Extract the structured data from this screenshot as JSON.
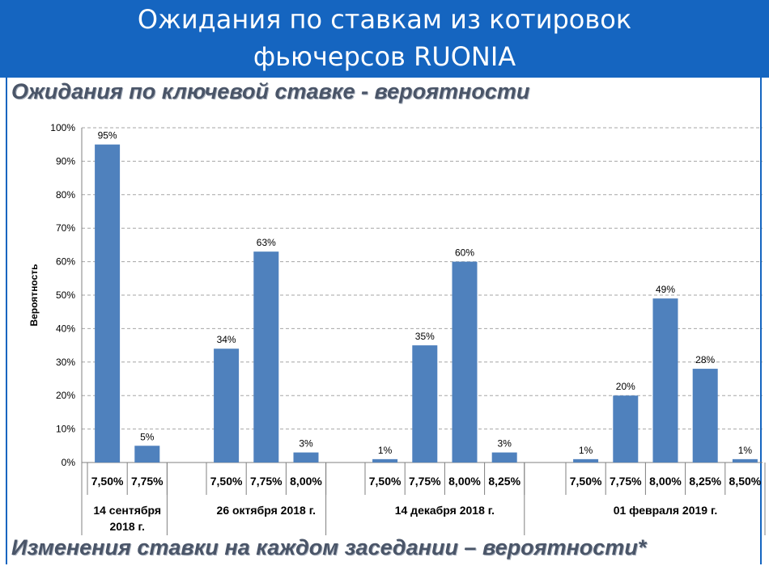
{
  "banner": {
    "line1": "Ожидания по ставкам из котировок",
    "line2": "фьючерсов RUONIA"
  },
  "headings": {
    "top": "Ожидания по  ключевой ставке  - вероятности",
    "bottom": "Изменения ставки на каждом заседании – вероятности*"
  },
  "colors": {
    "banner": "#1565c0",
    "bar": "#4f81bd",
    "heading": "#4a5568"
  },
  "chart_data": {
    "type": "bar",
    "ylabel": "Вероятность",
    "ylim": [
      0,
      100
    ],
    "yticks": [
      "0%",
      "10%",
      "20%",
      "30%",
      "40%",
      "50%",
      "60%",
      "70%",
      "80%",
      "90%",
      "100%"
    ],
    "grid": true,
    "groups": [
      {
        "label_lines": [
          "14 сентября",
          "2018 г."
        ],
        "categories": [
          "7,50%",
          "7,75%"
        ],
        "values": [
          95,
          5
        ],
        "value_labels": [
          "95%",
          "5%"
        ]
      },
      {
        "label_lines": [
          "26 октября 2018 г."
        ],
        "categories": [
          "7,50%",
          "7,75%",
          "8,00%"
        ],
        "values": [
          34,
          63,
          3
        ],
        "value_labels": [
          "34%",
          "63%",
          "3%"
        ]
      },
      {
        "label_lines": [
          "14 декабря 2018 г."
        ],
        "categories": [
          "7,50%",
          "7,75%",
          "8,00%",
          "8,25%"
        ],
        "values": [
          1,
          35,
          60,
          3
        ],
        "value_labels": [
          "1%",
          "35%",
          "60%",
          "3%"
        ]
      },
      {
        "label_lines": [
          "01 февраля 2019 г."
        ],
        "categories": [
          "7,50%",
          "7,75%",
          "8,00%",
          "8,25%",
          "8,50%"
        ],
        "values": [
          1,
          20,
          49,
          28,
          1
        ],
        "value_labels": [
          "1%",
          "20%",
          "49%",
          "28%",
          "1%"
        ]
      }
    ]
  }
}
